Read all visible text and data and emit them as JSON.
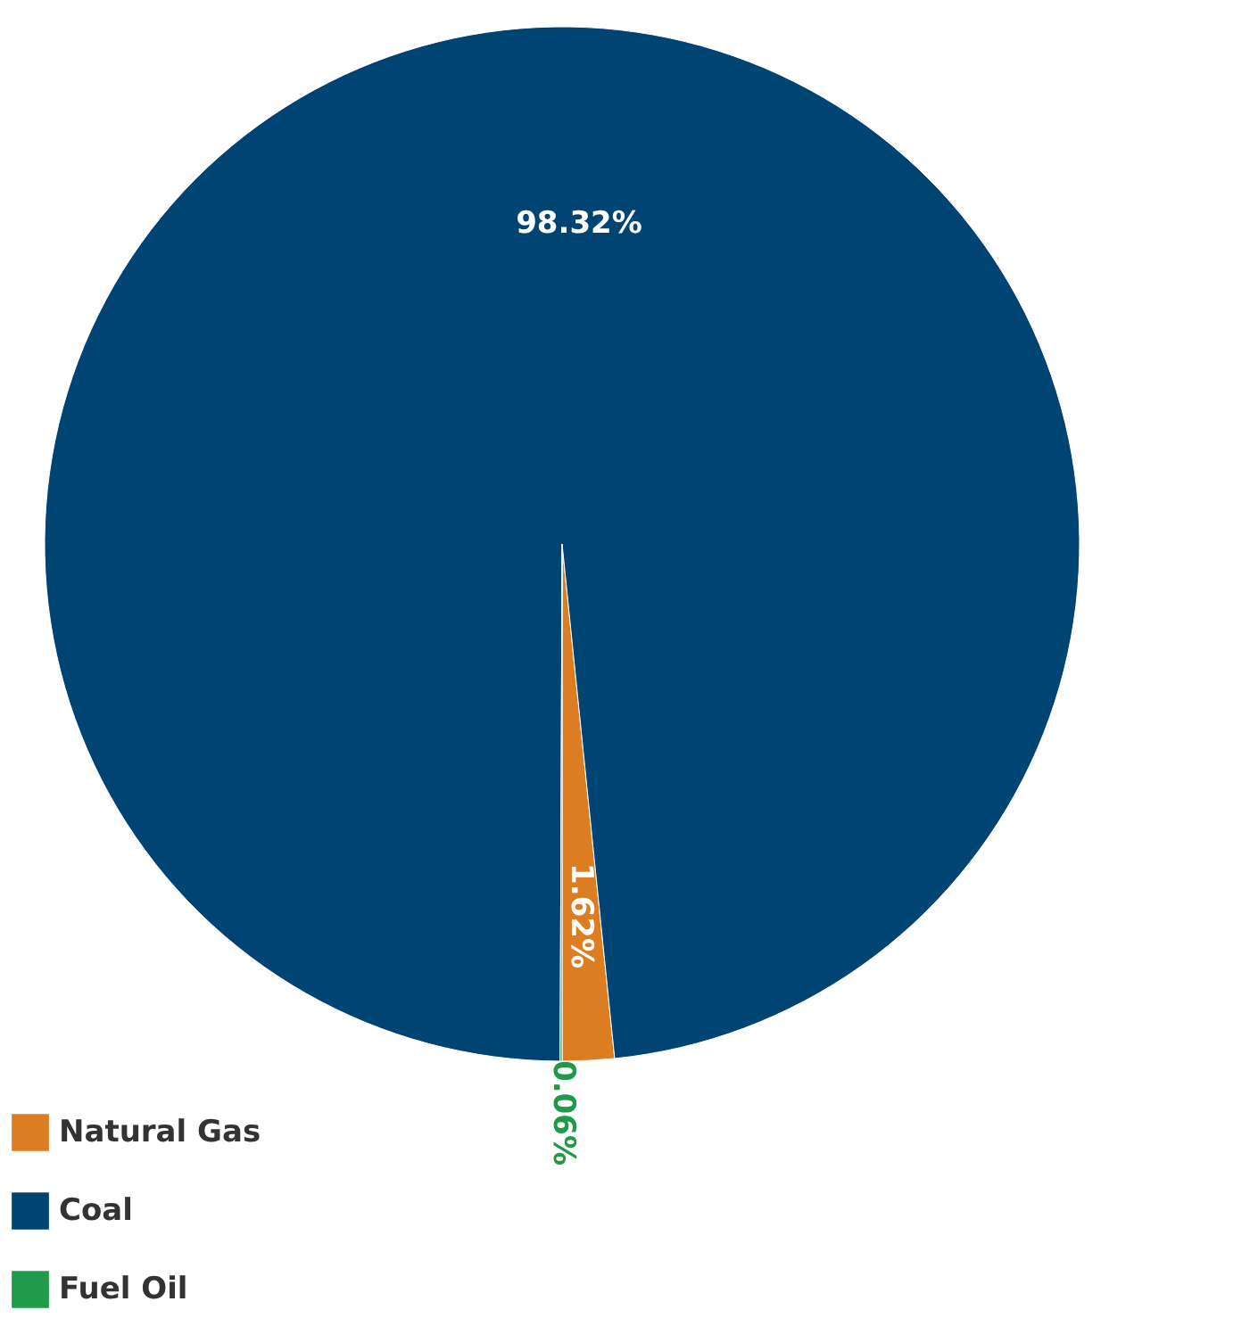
{
  "chart_data": {
    "type": "pie",
    "categories": [
      "Natural Gas",
      "Coal",
      "Fuel Oil"
    ],
    "values": [
      1.62,
      98.32,
      0.06
    ],
    "colors": [
      "#dd7d22",
      "#004473",
      "#1f9a4a"
    ],
    "value_labels": [
      "1.62%",
      "98.32%",
      "0.06%"
    ],
    "legend": "bottom"
  }
}
